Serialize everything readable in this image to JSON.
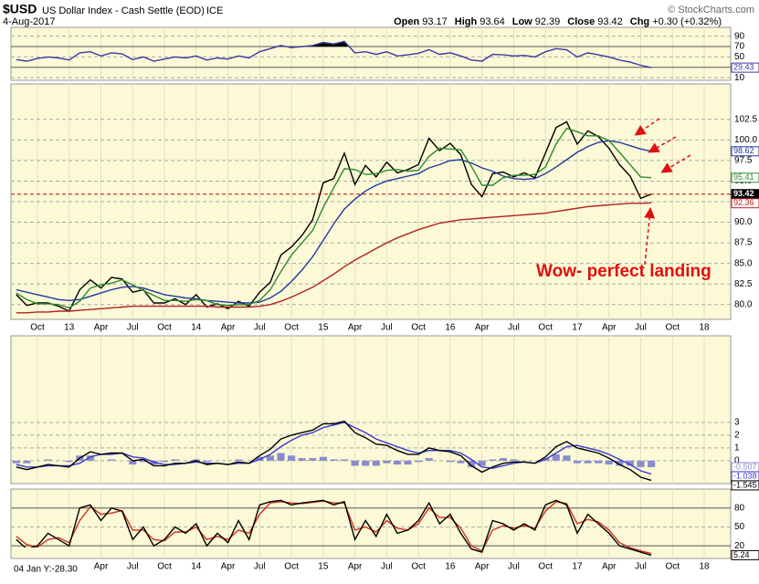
{
  "header": {
    "symbol": "$USD",
    "name": "US Dollar Index - Cash Settle (EOD)",
    "exchange": "ICE",
    "date": "4-Aug-2017",
    "source": "© StockCharts.com",
    "quote": [
      {
        "label": "Open",
        "value": "93.17"
      },
      {
        "label": "High",
        "value": "93.64"
      },
      {
        "label": "Low",
        "value": "92.39"
      },
      {
        "label": "Close",
        "value": "93.42"
      },
      {
        "label": "Chg",
        "value": "+0.30 (+0.32%)"
      }
    ]
  },
  "chart_data": [
    {
      "type": "line",
      "ylim": [
        5,
        107
      ],
      "yticks": [
        10,
        30,
        50,
        70,
        90
      ],
      "overbought": 70,
      "oversold": 30,
      "fill_overbought": true,
      "series": [
        {
          "color": "#3a3aa0",
          "last_label": true,
          "values": [
            45,
            42,
            47,
            50,
            48,
            44,
            58,
            60,
            52,
            58,
            56,
            45,
            50,
            42,
            46,
            50,
            48,
            52,
            44,
            48,
            46,
            52,
            48,
            60,
            66,
            72,
            68,
            70,
            72,
            78,
            75,
            80,
            58,
            60,
            55,
            60,
            52,
            54,
            57,
            64,
            55,
            58,
            52,
            44,
            42,
            55,
            54,
            52,
            53,
            50,
            60,
            66,
            64,
            50,
            58,
            54,
            50,
            44,
            40,
            34,
            29.43,
            null,
            null,
            null,
            null,
            null,
            null,
            null
          ]
        }
      ]
    },
    {
      "type": "line",
      "ylim": [
        78.2,
        106.8
      ],
      "yticks": [
        {
          "value": 80,
          "label": "80.0"
        },
        82.5,
        {
          "value": 85,
          "label": "85.0"
        },
        87.5,
        {
          "value": 90,
          "label": "90.0"
        },
        92.5,
        {
          "value": 95,
          "label": "95.0"
        },
        97.5,
        {
          "value": 100,
          "label": "100.0"
        },
        102.5
      ],
      "last_line": true,
      "annotation": "Wow-  perfect landing",
      "categories": [
        null,
        null,
        "Oct",
        null,
        null,
        "13",
        null,
        null,
        "Apr",
        null,
        null,
        "Jul",
        null,
        null,
        "Oct",
        null,
        null,
        "14",
        null,
        null,
        "Apr",
        null,
        null,
        "Jul",
        null,
        null,
        "Oct",
        null,
        null,
        "15",
        null,
        null,
        "Apr",
        null,
        null,
        "Jul",
        null,
        null,
        "Oct",
        null,
        null,
        "16",
        null,
        null,
        "Apr",
        null,
        null,
        "Jul",
        null,
        null,
        "Oct",
        null,
        null,
        "17",
        null,
        null,
        "Apr",
        null,
        null,
        "Jul",
        null,
        null,
        "Oct",
        null,
        null,
        "18",
        null,
        null
      ],
      "series": [
        {
          "color": "#000000",
          "last_label": true,
          "values": [
            81.2,
            79.9,
            80.2,
            80.2,
            79.8,
            79.2,
            81.8,
            83.0,
            82.0,
            83.3,
            83.1,
            81.5,
            81.8,
            80.2,
            80.2,
            80.7,
            80.0,
            81.2,
            79.7,
            80.1,
            79.5,
            80.4,
            79.8,
            81.5,
            82.7,
            86.0,
            87.0,
            88.4,
            90.3,
            94.8,
            95.3,
            98.4,
            94.6,
            96.9,
            95.5,
            97.3,
            96.0,
            96.4,
            97.0,
            100.2,
            98.7,
            99.6,
            98.2,
            94.6,
            93.1,
            95.9,
            96.1,
            95.5,
            96.0,
            95.4,
            98.4,
            101.5,
            102.2,
            99.5,
            101.1,
            100.4,
            99.0,
            97.0,
            95.6,
            92.9,
            93.42,
            null,
            null,
            null,
            null,
            null,
            null,
            null
          ]
        },
        {
          "color": "#1f3a9e",
          "last_label": true,
          "values": [
            81.8,
            81.5,
            81.2,
            80.9,
            80.6,
            80.5,
            80.6,
            81.0,
            81.4,
            81.8,
            82.1,
            82.2,
            82.0,
            81.6,
            81.2,
            81.0,
            80.8,
            80.7,
            80.5,
            80.4,
            80.3,
            80.2,
            80.2,
            80.3,
            80.8,
            81.6,
            82.8,
            84.2,
            85.8,
            87.8,
            89.8,
            91.6,
            92.8,
            93.8,
            94.5,
            95.0,
            95.3,
            95.6,
            95.9,
            96.6,
            97.0,
            97.5,
            97.6,
            97.2,
            96.6,
            96.2,
            95.6,
            95.3,
            95.2,
            95.3,
            95.9,
            96.7,
            97.6,
            98.5,
            99.2,
            99.7,
            99.9,
            99.7,
            99.3,
            98.9,
            98.62,
            null,
            null,
            null,
            null,
            null,
            null,
            null
          ]
        },
        {
          "color": "#2e8b2e",
          "last_label": true,
          "values": [
            81.4,
            80.6,
            80.1,
            80.1,
            80.0,
            79.6,
            80.4,
            82.0,
            82.4,
            82.6,
            83.0,
            82.4,
            81.7,
            81.1,
            80.5,
            80.5,
            80.4,
            80.6,
            80.5,
            80.0,
            79.9,
            80.0,
            80.0,
            80.5,
            81.8,
            84.0,
            86.0,
            87.5,
            89.0,
            91.8,
            94.2,
            96.5,
            96.4,
            95.8,
            95.9,
            96.3,
            96.4,
            96.2,
            96.3,
            98.0,
            99.0,
            98.9,
            98.8,
            96.8,
            94.5,
            94.5,
            95.4,
            95.7,
            95.7,
            95.8,
            96.7,
            99.5,
            101.4,
            101.0,
            100.5,
            100.5,
            99.9,
            98.5,
            97.0,
            95.5,
            95.41,
            null,
            null,
            null,
            null,
            null,
            null,
            null
          ]
        },
        {
          "color": "#b22222",
          "last_label": true,
          "values": [
            79.0,
            79.0,
            79.1,
            79.1,
            79.2,
            79.2,
            79.3,
            79.4,
            79.5,
            79.6,
            79.7,
            79.8,
            79.8,
            79.8,
            79.8,
            79.8,
            79.8,
            79.8,
            79.8,
            79.7,
            79.7,
            79.7,
            79.7,
            79.8,
            80.0,
            80.4,
            80.9,
            81.5,
            82.1,
            82.9,
            83.7,
            84.6,
            85.4,
            86.1,
            86.8,
            87.5,
            88.1,
            88.6,
            89.1,
            89.5,
            89.9,
            90.1,
            90.3,
            90.4,
            90.5,
            90.6,
            90.7,
            90.8,
            90.9,
            91.0,
            91.1,
            91.3,
            91.5,
            91.7,
            91.9,
            92.0,
            92.1,
            92.2,
            92.3,
            92.3,
            92.36,
            null,
            null,
            null,
            null,
            null,
            null,
            null
          ]
        }
      ]
    },
    {
      "type": "line",
      "ylim": [
        -1.8,
        9.8
      ],
      "yticks": [
        0,
        1,
        2,
        3
      ],
      "series": [
        {
          "type": "bar",
          "color": "#8a8ad0",
          "last_label": true,
          "values": [
            -0.2,
            -0.2,
            0,
            0.1,
            0,
            -0.1,
            0.4,
            0.4,
            0,
            0.1,
            0,
            -0.3,
            -0.1,
            -0.3,
            -0.1,
            0.1,
            0,
            0.1,
            -0.1,
            0,
            0,
            0.1,
            0,
            0.3,
            0.4,
            0.6,
            0.4,
            0.2,
            0.2,
            0.3,
            0.1,
            0.1,
            -0.4,
            -0.4,
            -0.4,
            -0.2,
            -0.3,
            -0.3,
            -0.1,
            0.2,
            0,
            -0.1,
            -0.2,
            -0.5,
            -0.4,
            0.1,
            0.2,
            0.1,
            0,
            0,
            0.2,
            0.5,
            0.4,
            -0.2,
            -0.2,
            -0.2,
            -0.3,
            -0.4,
            -0.4,
            -0.5,
            -0.507,
            null,
            null,
            null,
            null,
            null,
            null,
            null
          ]
        },
        {
          "color": "#3a3ad0",
          "last_label": true,
          "values": [
            -0.3,
            -0.5,
            -0.5,
            -0.4,
            -0.4,
            -0.4,
            -0.2,
            0.3,
            0.5,
            0.5,
            0.6,
            0.3,
            0.2,
            -0.1,
            -0.3,
            -0.3,
            -0.2,
            -0.1,
            -0.2,
            -0.2,
            -0.3,
            -0.2,
            -0.2,
            0.1,
            0.5,
            1.1,
            1.6,
            2.0,
            2.2,
            2.6,
            2.8,
            3.0,
            2.6,
            2.2,
            1.7,
            1.4,
            1.1,
            0.8,
            0.6,
            0.8,
            0.8,
            0.8,
            0.6,
            0.1,
            -0.5,
            -0.6,
            -0.4,
            -0.2,
            -0.1,
            -0.2,
            0.1,
            0.6,
            1.1,
            1.2,
            1.0,
            0.8,
            0.5,
            0.1,
            -0.3,
            -0.8,
            -1.038,
            null,
            null,
            null,
            null,
            null,
            null,
            null
          ]
        },
        {
          "color": "#000000",
          "last_label": true,
          "values": [
            -0.5,
            -0.7,
            -0.5,
            -0.3,
            -0.4,
            -0.5,
            0.2,
            0.7,
            0.5,
            0.6,
            0.6,
            0.0,
            0.1,
            -0.4,
            -0.4,
            -0.2,
            -0.2,
            0.0,
            -0.3,
            -0.2,
            -0.3,
            -0.1,
            -0.2,
            0.4,
            0.9,
            1.7,
            2.0,
            2.2,
            2.4,
            2.9,
            2.9,
            3.1,
            2.2,
            1.8,
            1.3,
            1.2,
            0.8,
            0.5,
            0.5,
            1.0,
            0.8,
            0.7,
            0.4,
            -0.4,
            -0.9,
            -0.5,
            -0.2,
            -0.1,
            -0.1,
            -0.2,
            0.3,
            1.1,
            1.5,
            1.0,
            0.8,
            0.6,
            0.2,
            -0.3,
            -0.7,
            -1.3,
            -1.545,
            null,
            null,
            null,
            null,
            null,
            null,
            null
          ]
        }
      ]
    },
    {
      "type": "line",
      "ylim": [
        0,
        110
      ],
      "yticks": [
        20,
        50,
        80
      ],
      "overbought": 80,
      "oversold": 20,
      "cursor_readout": "04 Jan Y:-28.30",
      "categories": [
        null,
        null,
        null,
        null,
        null,
        null,
        null,
        null,
        "Apr",
        null,
        null,
        "Jul",
        null,
        null,
        "Oct",
        null,
        null,
        "14",
        null,
        null,
        "Apr",
        null,
        null,
        "Jul",
        null,
        null,
        "Oct",
        null,
        null,
        "15",
        null,
        null,
        "Apr",
        null,
        null,
        "Jul",
        null,
        null,
        "Oct",
        null,
        null,
        "16",
        null,
        null,
        "Apr",
        null,
        null,
        "Jul",
        null,
        null,
        "Oct",
        null,
        null,
        "17",
        null,
        null,
        "Apr",
        null,
        null,
        "Jul",
        null,
        null,
        "Oct",
        null,
        null,
        "18",
        null,
        null
      ],
      "series": [
        {
          "color": "#d03020",
          "values": [
            35,
            22,
            18,
            30,
            33,
            25,
            60,
            82,
            70,
            72,
            76,
            45,
            45,
            30,
            28,
            42,
            42,
            50,
            30,
            35,
            30,
            45,
            40,
            70,
            88,
            90,
            88,
            87,
            89,
            91,
            88,
            88,
            45,
            50,
            42,
            60,
            48,
            45,
            55,
            80,
            65,
            65,
            48,
            20,
            12,
            45,
            52,
            48,
            52,
            48,
            75,
            90,
            87,
            55,
            62,
            58,
            45,
            25,
            17,
            12,
            8,
            null,
            null,
            null,
            null,
            null,
            null,
            null
          ]
        },
        {
          "color": "#000000",
          "last_label": true,
          "values": [
            30,
            15,
            20,
            40,
            30,
            20,
            80,
            85,
            60,
            80,
            75,
            30,
            50,
            20,
            30,
            50,
            40,
            55,
            20,
            40,
            25,
            60,
            30,
            85,
            90,
            92,
            85,
            88,
            90,
            92,
            85,
            90,
            30,
            60,
            35,
            70,
            40,
            45,
            60,
            88,
            55,
            70,
            40,
            15,
            10,
            60,
            55,
            45,
            55,
            45,
            85,
            92,
            85,
            40,
            70,
            55,
            40,
            20,
            15,
            10,
            5.24,
            null,
            null,
            null,
            null,
            null,
            null,
            null
          ]
        }
      ]
    }
  ]
}
